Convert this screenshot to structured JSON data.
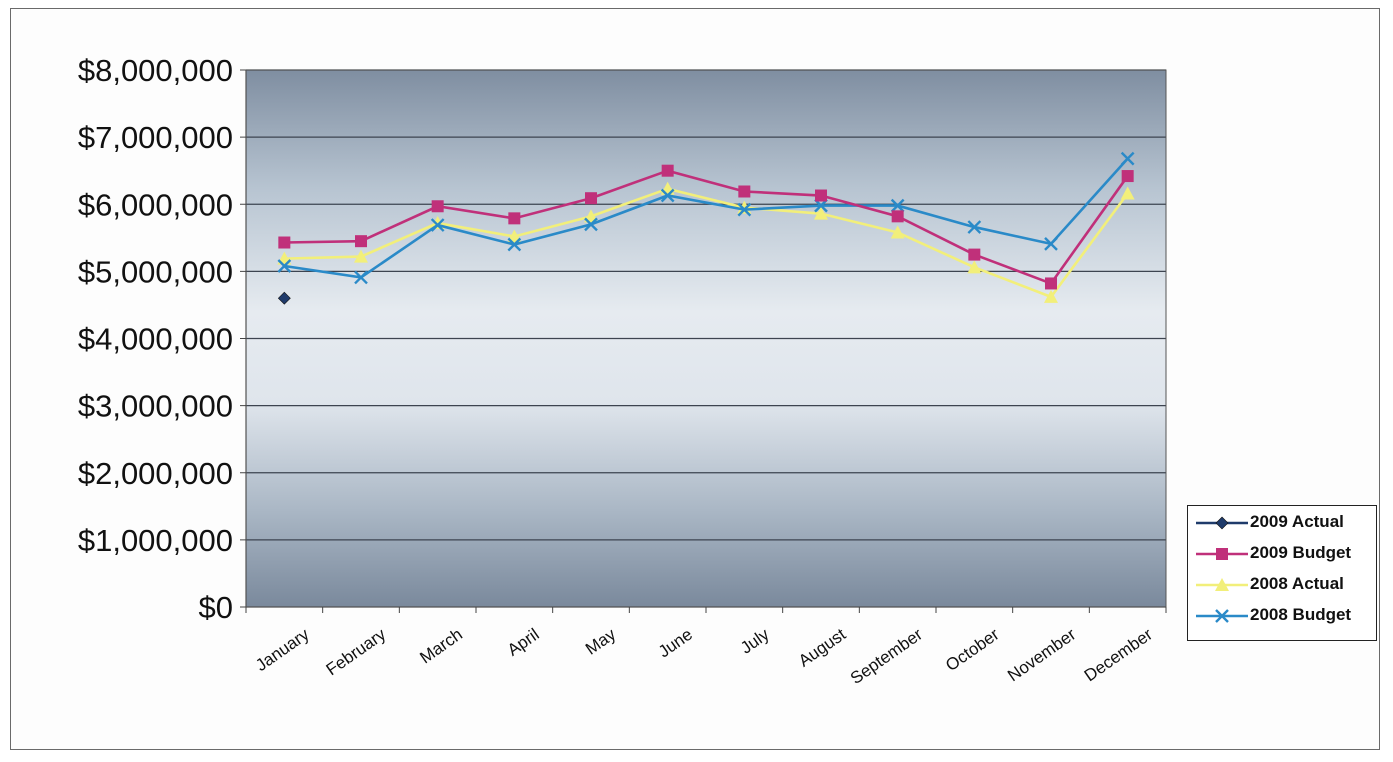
{
  "chart_data": {
    "type": "line",
    "categories": [
      "January",
      "February",
      "March",
      "April",
      "May",
      "June",
      "July",
      "August",
      "September",
      "October",
      "November",
      "December"
    ],
    "ylim": [
      0,
      8000000
    ],
    "yticks": [
      "$0",
      "$1,000,000",
      "$2,000,000",
      "$3,000,000",
      "$4,000,000",
      "$5,000,000",
      "$6,000,000",
      "$7,000,000",
      "$8,000,000"
    ],
    "grid": true,
    "legend_position": "bottom-right",
    "series": [
      {
        "name": "2009 Actual",
        "color": "#1f3b6b",
        "marker": "diamond",
        "values": [
          4600000,
          null,
          null,
          null,
          null,
          null,
          null,
          null,
          null,
          null,
          null,
          null
        ]
      },
      {
        "name": "2009 Budget",
        "color": "#c0307a",
        "marker": "square",
        "values": [
          5430000,
          5450000,
          5970000,
          5790000,
          6090000,
          6500000,
          6190000,
          6130000,
          5820000,
          5250000,
          4820000,
          6420000
        ]
      },
      {
        "name": "2008 Actual",
        "color": "#f2ef7a",
        "marker": "triangle",
        "values": [
          5190000,
          5220000,
          5720000,
          5520000,
          5820000,
          6230000,
          5950000,
          5860000,
          5580000,
          5060000,
          4620000,
          6160000
        ]
      },
      {
        "name": "2008 Budget",
        "color": "#2a8ac8",
        "marker": "x",
        "values": [
          5080000,
          4910000,
          5690000,
          5400000,
          5700000,
          6130000,
          5920000,
          5980000,
          5980000,
          5660000,
          5410000,
          6680000
        ]
      }
    ]
  }
}
